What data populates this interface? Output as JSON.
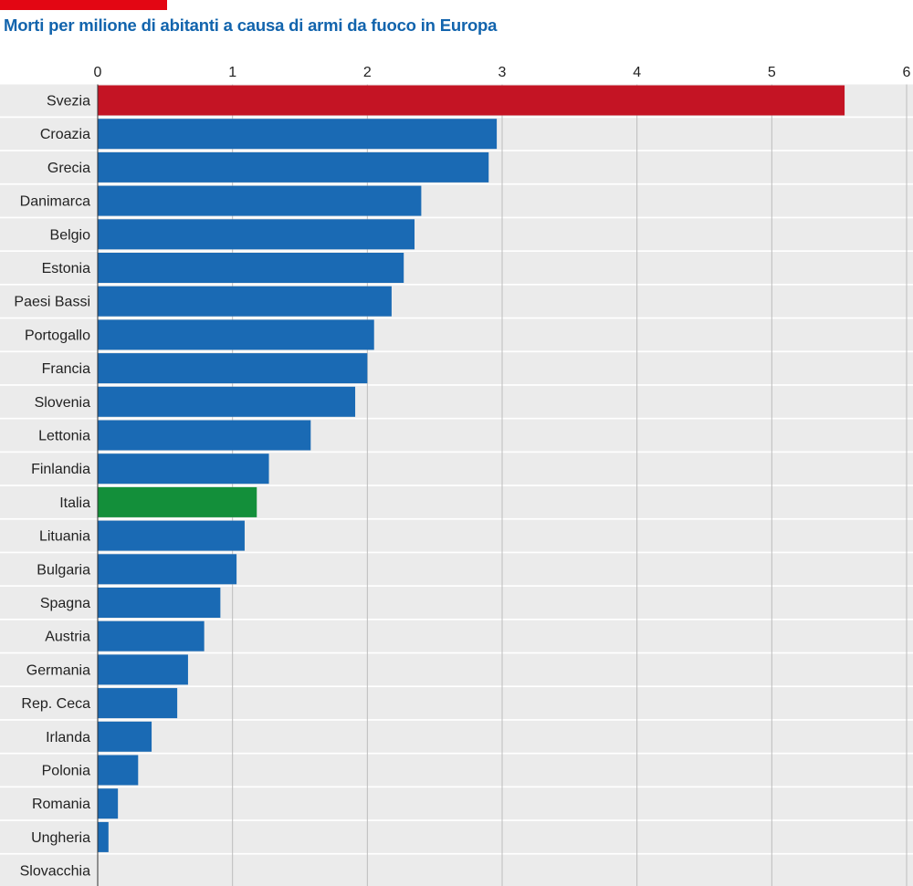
{
  "title": "Morti per milione di abitanti a causa di armi da fuoco in Europa",
  "colors": {
    "accent": "#e30613",
    "title": "#1264ad",
    "bar_default": "#1a6ab4",
    "bar_highlight_top": "#c41424",
    "bar_highlight_italy": "#138f3a",
    "row_background": "#ebebeb",
    "gridline": "#bdbdbd"
  },
  "chart_data": {
    "type": "bar",
    "orientation": "horizontal",
    "title": "Morti per milione di abitanti a causa di armi da fuoco in Europa",
    "xlabel": "",
    "ylabel": "",
    "xlim": [
      0,
      6
    ],
    "x_ticks": [
      0,
      1,
      2,
      3,
      4,
      5,
      6
    ],
    "grid": true,
    "axis_position": "top",
    "categories": [
      "Svezia",
      "Croazia",
      "Grecia",
      "Danimarca",
      "Belgio",
      "Estonia",
      "Paesi Bassi",
      "Portogallo",
      "Francia",
      "Slovenia",
      "Lettonia",
      "Finlandia",
      "Italia",
      "Lituania",
      "Bulgaria",
      "Spagna",
      "Austria",
      "Germania",
      "Rep. Ceca",
      "Irlanda",
      "Polonia",
      "Romania",
      "Ungheria",
      "Slovacchia"
    ],
    "values": [
      5.54,
      2.96,
      2.9,
      2.4,
      2.35,
      2.27,
      2.18,
      2.05,
      2.0,
      1.91,
      1.58,
      1.27,
      1.18,
      1.09,
      1.03,
      0.91,
      0.79,
      0.67,
      0.59,
      0.4,
      0.3,
      0.15,
      0.08,
      0
    ],
    "highlights": {
      "Svezia": "bar_highlight_top",
      "Italia": "bar_highlight_italy"
    }
  }
}
